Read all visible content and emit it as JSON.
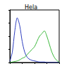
{
  "chart_data": {
    "type": "line",
    "title": "Hela",
    "x": [
      0,
      5,
      10,
      15,
      20,
      25,
      30,
      35,
      40,
      45,
      50,
      55,
      60,
      65,
      70,
      75,
      80,
      85,
      90,
      95,
      100
    ],
    "series": [
      {
        "color": "#2f3fbf",
        "values": [
          2,
          20,
          60,
          85,
          70,
          40,
          20,
          10,
          6,
          4,
          3,
          2,
          1,
          1,
          1,
          0,
          0,
          0,
          0,
          0,
          0
        ]
      },
      {
        "color": "#3cb83c",
        "values": [
          0,
          1,
          2,
          3,
          5,
          8,
          10,
          15,
          20,
          25,
          30,
          40,
          50,
          55,
          60,
          50,
          35,
          20,
          10,
          4,
          1
        ]
      }
    ],
    "xlim": [
      0,
      100
    ],
    "xticks": [
      0,
      25,
      50,
      75,
      100
    ],
    "ylim": [
      0,
      100
    ],
    "yticks": [
      0,
      25,
      50,
      75,
      100
    ],
    "grid": false,
    "tick_labels": false
  }
}
